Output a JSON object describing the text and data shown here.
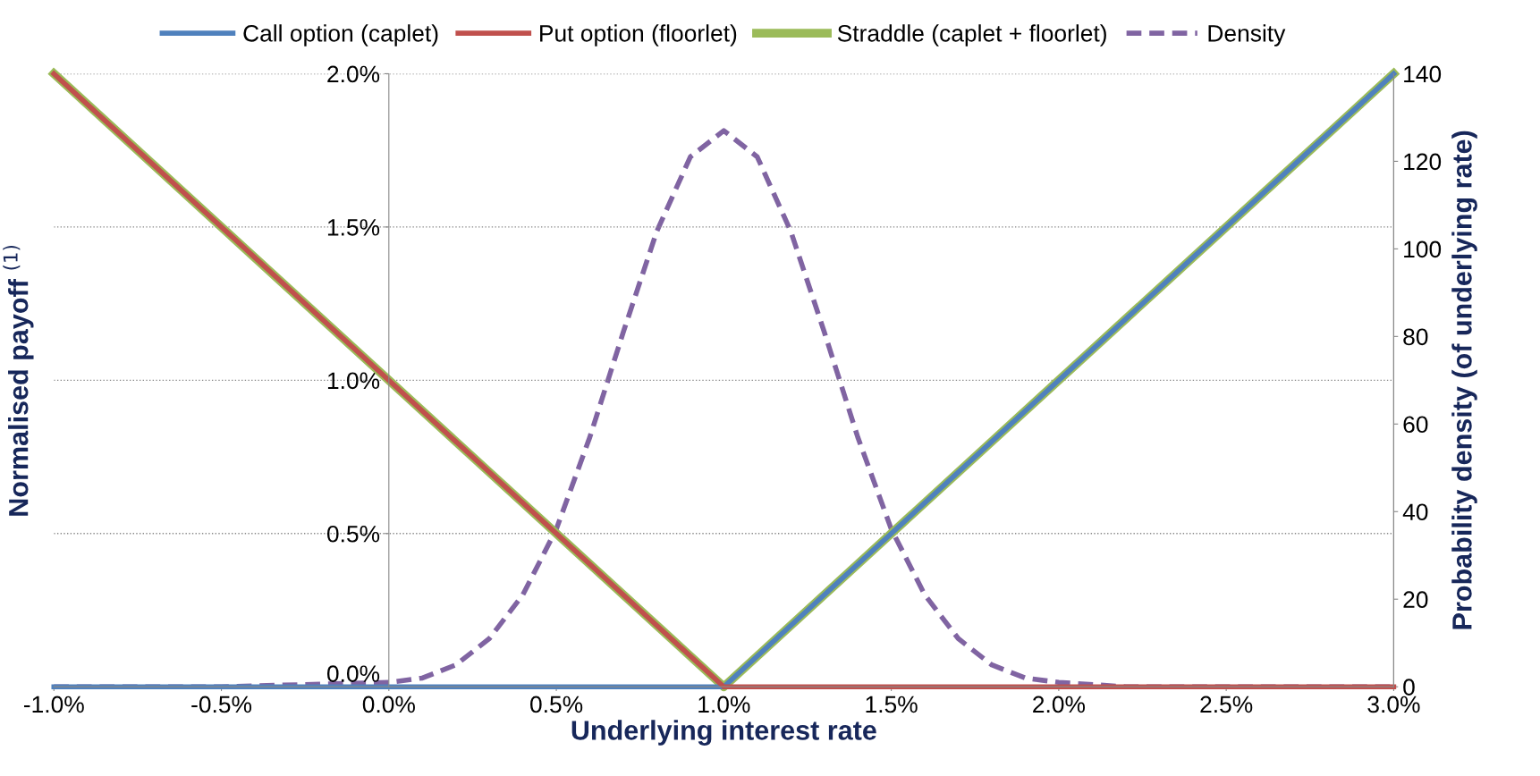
{
  "chart_data": {
    "type": "line",
    "xlabel": "Underlying interest rate",
    "ylabel": "Normalised payoff $^{(1)}$",
    "y2label": "Probability density (of underlying rate)",
    "xlim": [
      -1.0,
      3.0
    ],
    "xticks": [
      {
        "value": -1.0,
        "label": "-1.0%"
      },
      {
        "value": -0.5,
        "label": "-0.5%"
      },
      {
        "value": 0.0,
        "label": "0.0%"
      },
      {
        "value": 0.5,
        "label": "0.5%"
      },
      {
        "value": 1.0,
        "label": "1.0%"
      },
      {
        "value": 1.5,
        "label": "1.5%"
      },
      {
        "value": 2.0,
        "label": "2.0%"
      },
      {
        "value": 2.5,
        "label": "2.5%"
      },
      {
        "value": 3.0,
        "label": "3.0%"
      }
    ],
    "ylim": [
      0,
      2.0
    ],
    "yticks": [
      {
        "value": 0.0,
        "label": "0.0%"
      },
      {
        "value": 0.5,
        "label": "0.5%"
      },
      {
        "value": 1.0,
        "label": "1.0%"
      },
      {
        "value": 1.5,
        "label": "1.5%"
      },
      {
        "value": 2.0,
        "label": "2.0%"
      }
    ],
    "y2lim": [
      0,
      140
    ],
    "y2ticks": [
      0,
      20,
      40,
      60,
      80,
      100,
      120,
      140
    ],
    "grid": "y",
    "legend": "top",
    "marker": "none",
    "series": [
      {
        "name": "Call option (caplet)",
        "color": "#4f81bd",
        "x": [
          -1.0,
          1.0,
          3.0
        ],
        "values": [
          0,
          0,
          2.0
        ],
        "line_style": "solid"
      },
      {
        "name": "Put option (floorlet)",
        "color": "#c0504d",
        "x": [
          -1.0,
          1.0,
          3.0
        ],
        "values": [
          2.0,
          0,
          0
        ],
        "line_style": "solid"
      },
      {
        "name": "Straddle (caplet + floorlet)",
        "color": "#9bbb59",
        "x": [
          -1.0,
          1.0,
          3.0
        ],
        "values": [
          2.0,
          0,
          2.0
        ],
        "line_style": "solid"
      },
      {
        "name": "Density",
        "color": "#8064a2",
        "axis": "y2",
        "line_style": "dashed",
        "x": [
          -1.0,
          -0.5,
          0.0,
          0.1,
          0.2,
          0.3,
          0.4,
          0.5,
          0.6,
          0.7,
          0.8,
          0.9,
          1.0,
          1.1,
          1.2,
          1.3,
          1.4,
          1.5,
          1.6,
          1.7,
          1.8,
          1.9,
          2.0,
          2.2,
          2.5,
          3.0
        ],
        "values": [
          0,
          0,
          1,
          2,
          5,
          11,
          21,
          36,
          57,
          81,
          104,
          121,
          127,
          121,
          104,
          81,
          57,
          36,
          21,
          11,
          5,
          2,
          1,
          0,
          0,
          0
        ]
      }
    ]
  }
}
